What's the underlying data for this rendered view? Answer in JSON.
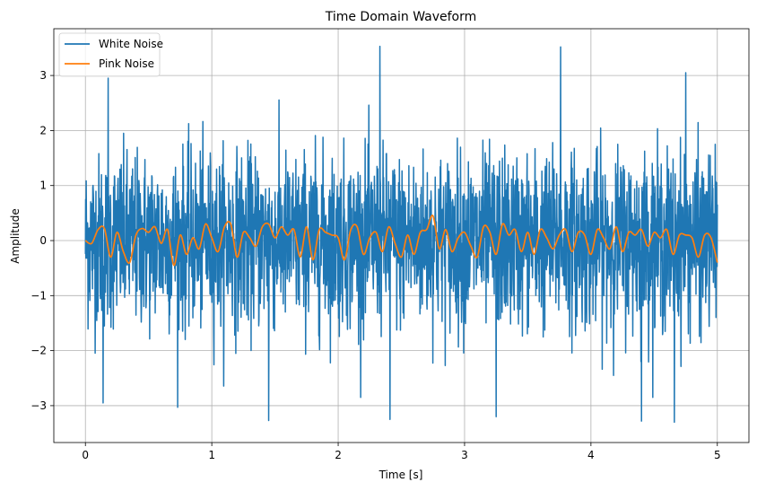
{
  "chart_data": {
    "type": "line",
    "title": "Time Domain Waveform",
    "xlabel": "Time [s]",
    "ylabel": "Amplitude",
    "xlim": [
      -0.25,
      5.25
    ],
    "ylim": [
      -3.67,
      3.85
    ],
    "xticks": [
      0,
      1,
      2,
      3,
      4,
      5
    ],
    "xtick_labels": [
      "0",
      "1",
      "2",
      "3",
      "4",
      "5"
    ],
    "yticks": [
      -3,
      -2,
      -1,
      0,
      1,
      2,
      3
    ],
    "ytick_labels": [
      "−3",
      "−2",
      "−1",
      "0",
      "1",
      "2",
      "3"
    ],
    "grid": true,
    "legend_position": "top-left",
    "series": [
      {
        "name": "White Noise",
        "color": "#1f77b4",
        "approximate_shape": "dense random noise across 0–5 s, roughly standard normal",
        "notable_points": [
          {
            "x": 0.18,
            "y": 2.95
          },
          {
            "x": 0.14,
            "y": -2.95
          },
          {
            "x": 0.73,
            "y": -3.03
          },
          {
            "x": 1.45,
            "y": -3.27
          },
          {
            "x": 2.33,
            "y": 3.53
          },
          {
            "x": 2.41,
            "y": -3.25
          },
          {
            "x": 3.25,
            "y": -3.2
          },
          {
            "x": 3.76,
            "y": 3.52
          },
          {
            "x": 4.4,
            "y": -3.28
          },
          {
            "x": 4.66,
            "y": -3.3
          },
          {
            "x": 4.75,
            "y": 3.05
          }
        ]
      },
      {
        "name": "Pink Noise",
        "color": "#ff7f0e",
        "x": [
          0.0,
          0.05,
          0.1,
          0.15,
          0.2,
          0.25,
          0.3,
          0.35,
          0.4,
          0.45,
          0.5,
          0.55,
          0.6,
          0.65,
          0.7,
          0.75,
          0.8,
          0.85,
          0.9,
          0.95,
          1.0,
          1.05,
          1.1,
          1.15,
          1.2,
          1.25,
          1.3,
          1.35,
          1.4,
          1.45,
          1.5,
          1.55,
          1.6,
          1.65,
          1.7,
          1.75,
          1.8,
          1.85,
          1.9,
          1.95,
          2.0,
          2.05,
          2.1,
          2.15,
          2.2,
          2.25,
          2.3,
          2.35,
          2.4,
          2.45,
          2.5,
          2.55,
          2.6,
          2.65,
          2.7,
          2.75,
          2.8,
          2.85,
          2.9,
          2.95,
          3.0,
          3.05,
          3.1,
          3.15,
          3.2,
          3.25,
          3.3,
          3.35,
          3.4,
          3.45,
          3.5,
          3.55,
          3.6,
          3.65,
          3.7,
          3.75,
          3.8,
          3.85,
          3.9,
          3.95,
          4.0,
          4.05,
          4.1,
          4.15,
          4.2,
          4.25,
          4.3,
          4.35,
          4.4,
          4.45,
          4.5,
          4.55,
          4.6,
          4.65,
          4.7,
          4.75,
          4.8,
          4.85,
          4.9,
          4.95,
          5.0
        ],
        "values": [
          0.0,
          -0.05,
          0.2,
          0.22,
          -0.3,
          0.15,
          -0.2,
          -0.4,
          0.1,
          0.22,
          0.15,
          0.25,
          -0.05,
          0.2,
          -0.45,
          0.1,
          -0.25,
          0.05,
          -0.15,
          0.3,
          0.05,
          -0.2,
          0.25,
          0.3,
          -0.3,
          0.15,
          0.05,
          -0.1,
          0.25,
          0.3,
          0.05,
          0.25,
          0.1,
          0.2,
          -0.3,
          0.25,
          -0.35,
          0.2,
          0.15,
          0.1,
          0.05,
          -0.35,
          0.2,
          0.25,
          -0.25,
          0.05,
          0.15,
          -0.2,
          0.25,
          -0.05,
          -0.3,
          0.1,
          -0.25,
          0.15,
          0.2,
          0.45,
          -0.15,
          0.2,
          -0.2,
          0.05,
          0.15,
          -0.1,
          -0.3,
          0.25,
          0.15,
          -0.25,
          0.3,
          0.1,
          0.2,
          -0.2,
          0.15,
          -0.25,
          0.2,
          0.05,
          -0.15,
          0.1,
          0.2,
          -0.2,
          0.15,
          0.1,
          -0.25,
          0.2,
          0.05,
          -0.15,
          0.25,
          -0.2,
          0.15,
          0.1,
          0.2,
          -0.1,
          0.15,
          0.05,
          0.2,
          -0.25,
          0.1,
          0.1,
          0.05,
          -0.3,
          0.1,
          0.05,
          -0.4
        ]
      }
    ]
  }
}
